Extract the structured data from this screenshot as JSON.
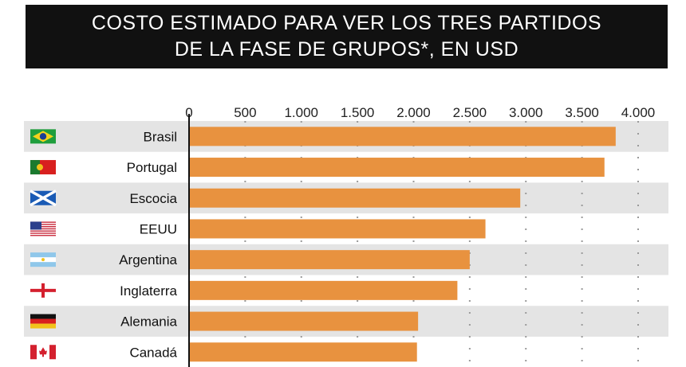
{
  "title": {
    "line1": "COSTO ESTIMADO PARA VER LOS TRES PARTIDOS",
    "line2": "DE LA FASE DE GRUPOS*, EN USD"
  },
  "colors": {
    "bar": "#e8923f",
    "stripe": "#e4e4e4",
    "title_bg": "#111111"
  },
  "chart_data": {
    "type": "bar",
    "orientation": "horizontal",
    "categories": [
      "Brasil",
      "Portugal",
      "Escocia",
      "EEUU",
      "Argentina",
      "Inglaterra",
      "Alemania",
      "Canadá"
    ],
    "flags": [
      "brazil-flag-icon",
      "portugal-flag-icon",
      "scotland-flag-icon",
      "usa-flag-icon",
      "argentina-flag-icon",
      "england-flag-icon",
      "germany-flag-icon",
      "canada-flag-icon"
    ],
    "values": [
      3800,
      3700,
      2950,
      2640,
      2500,
      2390,
      2040,
      2030
    ],
    "xlim": [
      0,
      4000
    ],
    "xticks": [
      0,
      500,
      1000,
      1500,
      2000,
      2500,
      3000,
      3500,
      4000
    ],
    "xtick_labels": [
      "0",
      "500",
      "1.000",
      "1.500",
      "2.000",
      "2.500",
      "3.000",
      "3.500",
      "4.000"
    ],
    "grid": "vertical dotted",
    "title": "COSTO ESTIMADO PARA VER LOS TRES PARTIDOS DE LA FASE DE GRUPOS*, EN USD",
    "xlabel": "",
    "ylabel": ""
  }
}
